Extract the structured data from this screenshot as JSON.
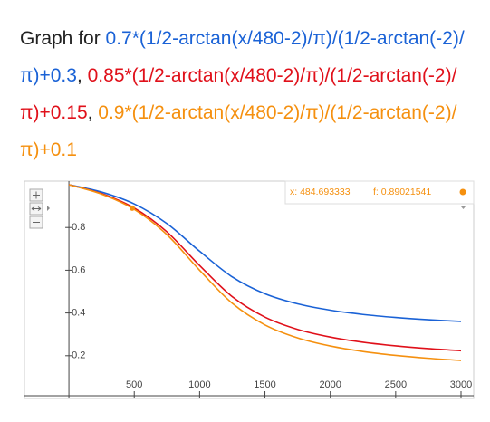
{
  "chart_data": {
    "type": "line",
    "title_prefix": "Graph for ",
    "separator": ", ",
    "x": [
      0,
      250,
      500,
      750,
      1000,
      1250,
      1500,
      1750,
      2000,
      2250,
      2500,
      2750,
      3000
    ],
    "series": [
      {
        "name": "0.7*(1/2-arctan(x/480-2)/π)/(1/2-arctan(-2)/π)+0.3",
        "color": "#1a62d6",
        "values": [
          1,
          0.9659,
          0.9103,
          0.8184,
          0.6889,
          0.5686,
          0.4899,
          0.4427,
          0.4131,
          0.3931,
          0.379,
          0.3685,
          0.3604
        ]
      },
      {
        "name": "0.85*(1/2-arctan(x/480-2)/π)/(1/2-arctan(-2)/π)+0.15",
        "color": "#e0101a",
        "values": [
          1,
          0.9586,
          0.8911,
          0.7795,
          0.6222,
          0.4761,
          0.3806,
          0.3232,
          0.2873,
          0.2631,
          0.246,
          0.2332,
          0.2234
        ]
      },
      {
        "name": "0.9*(1/2-arctan(x/480-2)/π)/(1/2-arctan(-2)/π)+0.1",
        "color": "#f5900f",
        "values": [
          1,
          0.9562,
          0.8847,
          0.7665,
          0.6,
          0.4453,
          0.3442,
          0.2834,
          0.2454,
          0.2197,
          0.2016,
          0.1881,
          0.1777
        ]
      }
    ],
    "xlim": [
      -340,
      3097
    ],
    "ylim": [
      0,
      1.017
    ],
    "xticks": [
      500,
      1000,
      1500,
      2000,
      2500,
      3000
    ],
    "yticks": [
      0.2,
      0.4,
      0.6,
      0.8
    ],
    "cursor": {
      "x": 484.693333,
      "f": 0.89021541,
      "x_label": "x: 484.693333",
      "f_label": "f: 0.89021541",
      "series": 2
    }
  }
}
